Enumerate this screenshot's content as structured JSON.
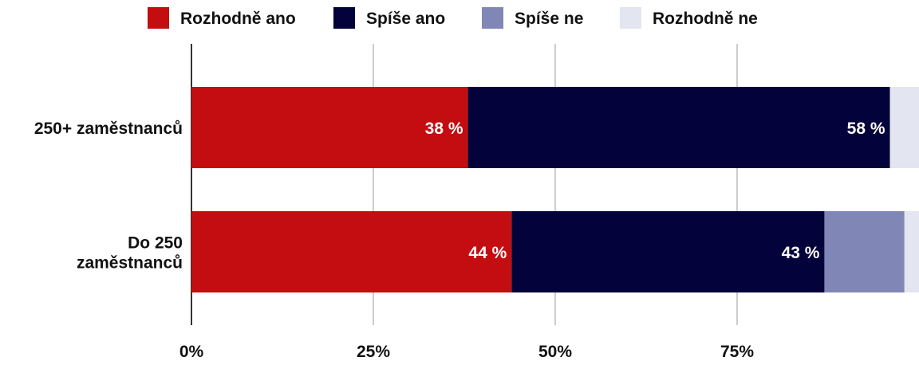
{
  "chart_data": {
    "type": "bar",
    "orientation": "horizontal",
    "stacked": true,
    "title": "",
    "xlabel": "",
    "ylabel": "",
    "xlim": [
      0,
      100
    ],
    "x_ticks": [
      "0%",
      "25%",
      "50%",
      "75%"
    ],
    "x_tick_values": [
      0,
      25,
      50,
      75
    ],
    "grid": true,
    "legend_position": "top",
    "categories": [
      [
        "250+ zaměstnanců"
      ],
      [
        "Do 250",
        "zaměstnanců"
      ]
    ],
    "series": [
      {
        "name": "Rozhodně ano",
        "color": "#c40d10",
        "values": [
          38,
          44
        ],
        "labels": [
          "38 %",
          "44 %"
        ]
      },
      {
        "name": "Spíše ano",
        "color": "#03023a",
        "values": [
          58,
          43
        ],
        "labels": [
          "58 %",
          "43 %"
        ]
      },
      {
        "name": "Spíše ne",
        "color": "#8087b6",
        "values": [
          0,
          11
        ],
        "labels": [
          "",
          ""
        ]
      },
      {
        "name": "Rozhodně ne",
        "color": "#e3e5f1",
        "values": [
          4,
          2
        ],
        "labels": [
          "",
          ""
        ]
      }
    ]
  }
}
